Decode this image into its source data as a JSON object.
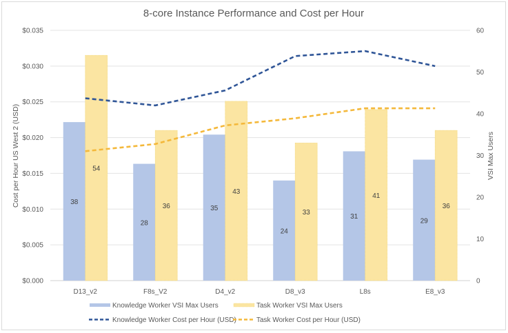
{
  "chart_data": {
    "type": "bar",
    "title": "8-core Instance Performance and Cost per Hour",
    "categories": [
      "D13_v2",
      "F8s_V2",
      "D4_v2",
      "D8_v3",
      "L8s",
      "E8_v3"
    ],
    "y_left": {
      "label": "Cost per Hour US West 2 (USD)",
      "range": [
        0,
        0.035
      ],
      "ticks": [
        "$0.000",
        "$0.005",
        "$0.010",
        "$0.015",
        "$0.020",
        "$0.025",
        "$0.030",
        "$0.035"
      ],
      "tick_values": [
        0,
        0.005,
        0.01,
        0.015,
        0.02,
        0.025,
        0.03,
        0.035
      ]
    },
    "y_right": {
      "label": "VSI Max Users",
      "range": [
        0,
        60
      ],
      "ticks": [
        "0",
        "10",
        "20",
        "30",
        "40",
        "50",
        "60"
      ],
      "tick_values": [
        0,
        10,
        20,
        30,
        40,
        50,
        60
      ]
    },
    "grid": true,
    "legend_position": "bottom",
    "series": [
      {
        "name": "Knowledge Worker VSI Max Users",
        "type": "bar",
        "axis": "right",
        "color": "#b4c6e7",
        "values": [
          38,
          28,
          35,
          24,
          31,
          29
        ],
        "labels": [
          "38",
          "28",
          "35",
          "24",
          "31",
          "29"
        ]
      },
      {
        "name": "Task Worker VSI Max Users",
        "type": "bar",
        "axis": "right",
        "color": "#fbe5a2",
        "values": [
          54,
          36,
          43,
          33,
          41,
          36
        ],
        "labels": [
          "54",
          "36",
          "43",
          "33",
          "41",
          "36"
        ]
      },
      {
        "name": "Knowledge Worker Cost per Hour (USD)",
        "type": "line",
        "style": "dashed",
        "axis": "left",
        "color": "#2f5597",
        "values": [
          0.0255,
          0.0245,
          0.0266,
          0.0314,
          0.0321,
          0.03
        ]
      },
      {
        "name": "Task Worker Cost per Hour (USD)",
        "type": "line",
        "style": "dashed",
        "axis": "left",
        "color": "#f4b83a",
        "values": [
          0.0181,
          0.0191,
          0.0217,
          0.0227,
          0.0241,
          0.0241
        ]
      }
    ]
  }
}
